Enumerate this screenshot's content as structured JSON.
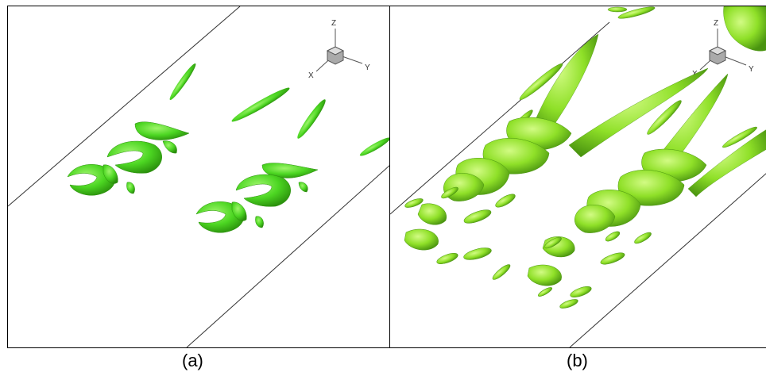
{
  "panels": [
    {
      "caption": "(a)",
      "axes_triad": {
        "z": "Z",
        "y": "Y",
        "x": "X"
      },
      "colors": {
        "isosurface": "#4cd622",
        "isosurface_dark": "#2f9a10",
        "isosurface_light": "#8ef060"
      }
    },
    {
      "caption": "(b)",
      "axes_triad": {
        "z": "Z",
        "y": "Y",
        "x": "X"
      },
      "colors": {
        "isosurface": "#8fe028",
        "isosurface_dark": "#4f9a10",
        "isosurface_light": "#c4f870"
      }
    }
  ]
}
